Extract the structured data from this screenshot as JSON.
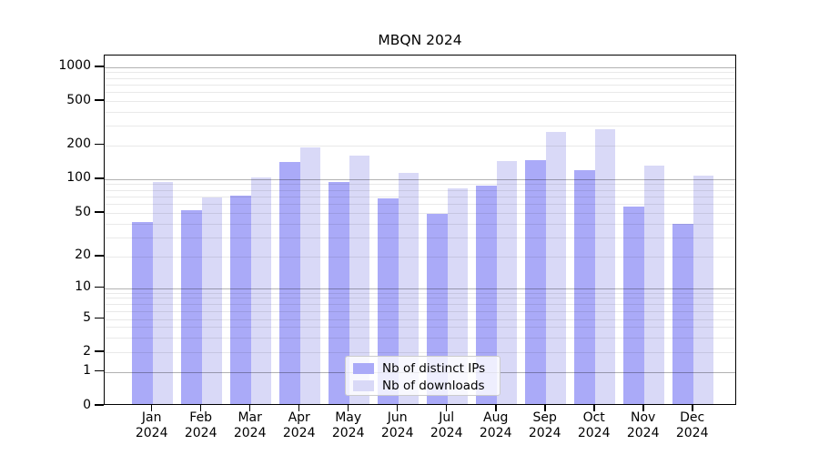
{
  "chart_data": {
    "type": "bar",
    "title": "MBQN 2024",
    "categories": [
      "Jan 2024",
      "Feb 2024",
      "Mar 2024",
      "Apr 2024",
      "May 2024",
      "Jun 2024",
      "Jul 2024",
      "Aug 2024",
      "Sep 2024",
      "Oct 2024",
      "Nov 2024",
      "Dec 2024"
    ],
    "series": [
      {
        "key": "distinct-ips",
        "name": "Nb of distinct IPs",
        "color": "#aaaaf8",
        "values": [
          40,
          51,
          69,
          136,
          91,
          65,
          47,
          84,
          143,
          115,
          55,
          38
        ]
      },
      {
        "key": "downloads",
        "name": "Nb of downloads",
        "color": "#d9d9f7",
        "values": [
          90,
          66,
          100,
          183,
          156,
          110,
          79,
          138,
          255,
          266,
          126,
          104
        ]
      }
    ],
    "y_ticks": [
      1000,
      500,
      200,
      100,
      50,
      20,
      10,
      5,
      2,
      1,
      0
    ],
    "ylim": [
      0,
      1270
    ],
    "yscale": "symlog",
    "xlabel": "",
    "ylabel": "",
    "grid": "horizontal; faint minor lines at 2-9 per decade, solid gray lines at powers of 10",
    "legend_position": "lower center"
  },
  "colors": {
    "background": "#ffffff",
    "axis": "#000000",
    "grid_major": "#b4b4b4",
    "grid_minor": "#e9e9e9",
    "legend_border": "#cccccc"
  }
}
